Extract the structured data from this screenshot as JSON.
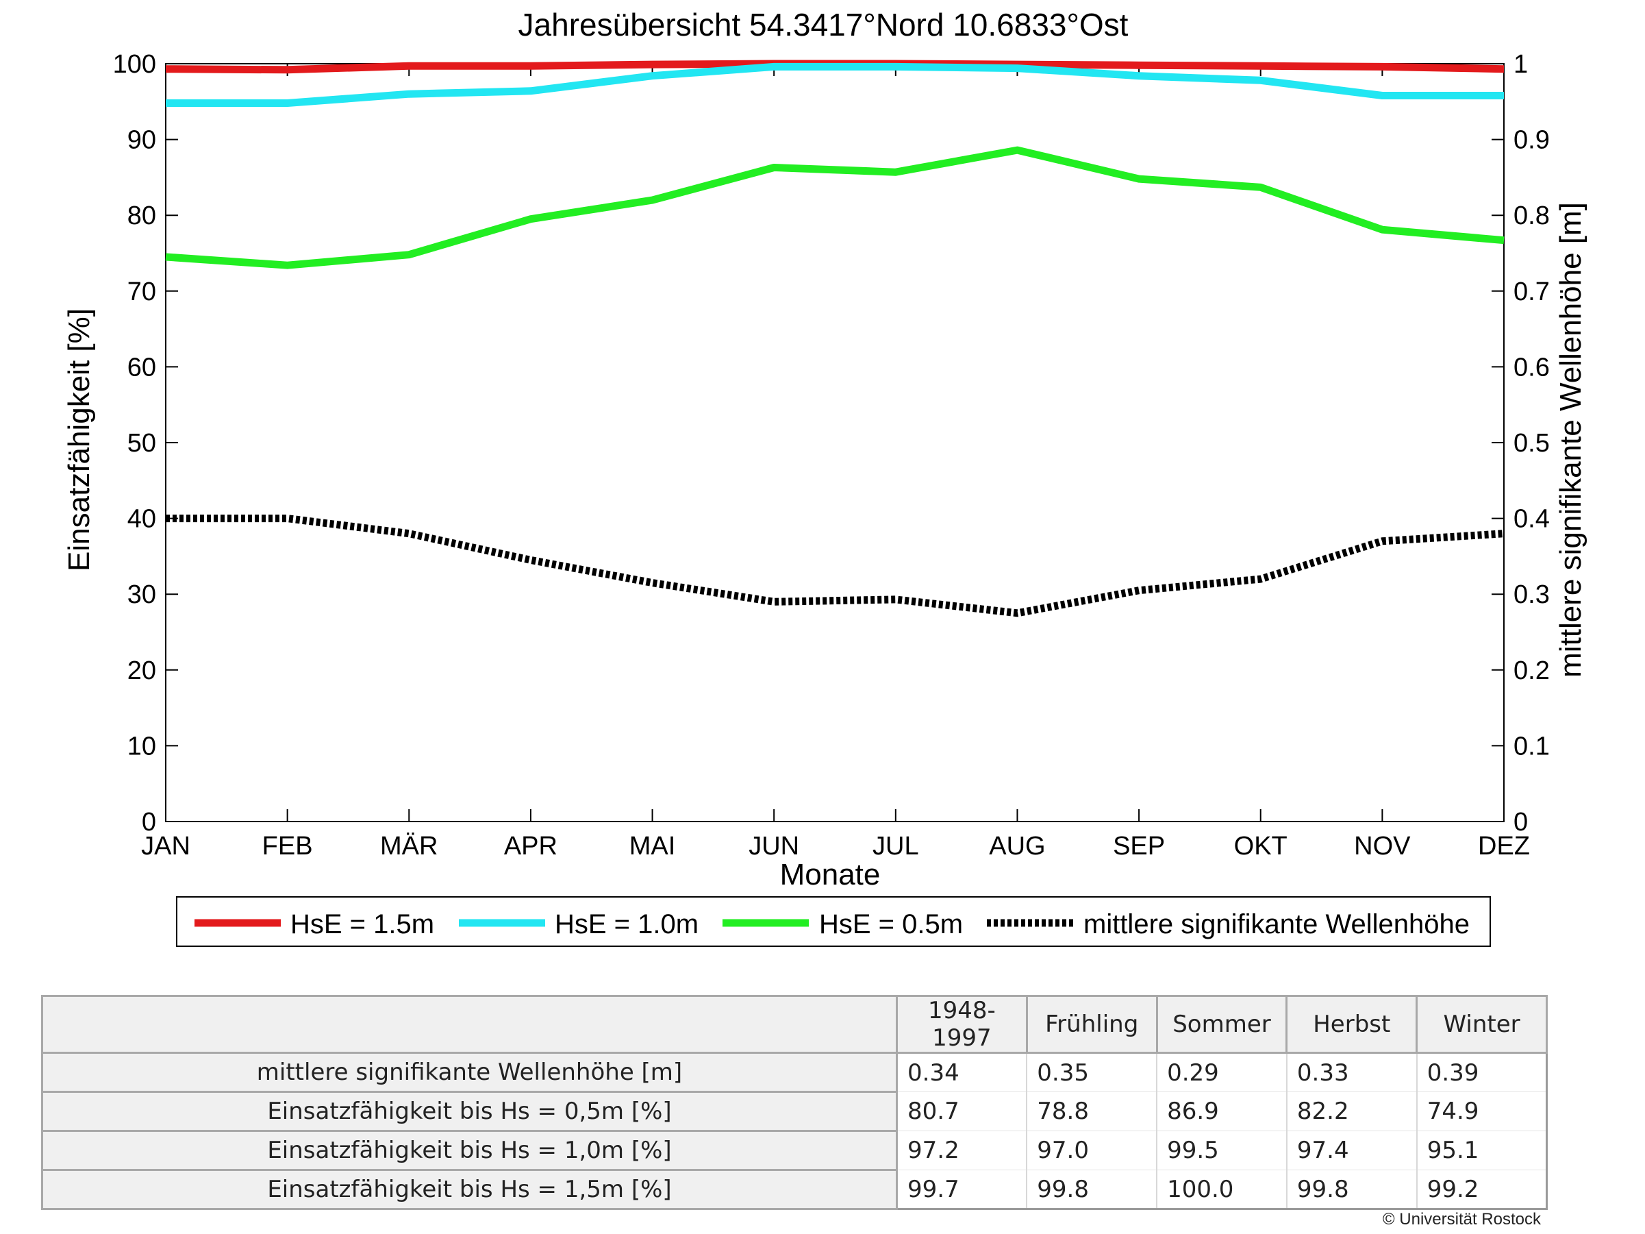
{
  "chart_data": {
    "type": "line",
    "title": "Jahresübersicht  54.3417°Nord  10.6833°Ost",
    "xlabel": "Monate",
    "ylabel": "Einsatzfähigkeit [%]",
    "y2label": "mittlere signifikante Wellenhöhe [m]",
    "categories": [
      "JAN",
      "FEB",
      "MÄR",
      "APR",
      "MAI",
      "JUN",
      "JUL",
      "AUG",
      "SEP",
      "OKT",
      "NOV",
      "DEZ"
    ],
    "ylim": [
      0,
      100
    ],
    "y2lim": [
      0,
      1
    ],
    "yticks": [
      "0",
      "10",
      "20",
      "30",
      "40",
      "50",
      "60",
      "70",
      "80",
      "90",
      "100"
    ],
    "y2ticks": [
      "0",
      "0.1",
      "0.2",
      "0.3",
      "0.4",
      "0.5",
      "0.6",
      "0.7",
      "0.8",
      "0.9",
      "1"
    ],
    "legend_position": "bottom",
    "grid": false,
    "series": [
      {
        "name": "HsE = 1.5m",
        "axis": "left",
        "color": "#e31a1c",
        "style": "solid",
        "values": [
          99.3,
          99.2,
          99.7,
          99.7,
          99.9,
          100.0,
          100.0,
          99.9,
          99.8,
          99.7,
          99.6,
          99.3
        ]
      },
      {
        "name": "HsE = 1.0m",
        "axis": "left",
        "color": "#22e6f2",
        "style": "solid",
        "values": [
          94.8,
          94.8,
          96.0,
          96.4,
          98.4,
          99.6,
          99.6,
          99.4,
          98.4,
          97.8,
          95.8,
          95.8
        ]
      },
      {
        "name": "HsE = 0.5m",
        "axis": "left",
        "color": "#22ee22",
        "style": "solid",
        "values": [
          74.5,
          73.4,
          74.8,
          79.5,
          82.0,
          86.3,
          85.7,
          88.6,
          84.8,
          83.7,
          78.1,
          76.7
        ]
      },
      {
        "name": "mittlere signifikante Wellenhöhe",
        "axis": "right",
        "color": "#000000",
        "style": "dotted",
        "values": [
          0.4,
          0.4,
          0.38,
          0.345,
          0.315,
          0.29,
          0.293,
          0.275,
          0.305,
          0.32,
          0.37,
          0.38
        ]
      }
    ]
  },
  "table": {
    "columns": [
      "1948-1997",
      "Frühling",
      "Sommer",
      "Herbst",
      "Winter"
    ],
    "rows": [
      {
        "label": "mittlere signifikante Wellenhöhe [m]",
        "values": [
          "0.34",
          "0.35",
          "0.29",
          "0.33",
          "0.39"
        ]
      },
      {
        "label": "Einsatzfähigkeit bis Hs = 0,5m [%]",
        "values": [
          "80.7",
          "78.8",
          "86.9",
          "82.2",
          "74.9"
        ]
      },
      {
        "label": "Einsatzfähigkeit bis Hs = 1,0m [%]",
        "values": [
          "97.2",
          "97.0",
          "99.5",
          "97.4",
          "95.1"
        ]
      },
      {
        "label": "Einsatzfähigkeit bis Hs = 1,5m [%]",
        "values": [
          "99.7",
          "99.8",
          "100.0",
          "99.8",
          "99.2"
        ]
      }
    ]
  },
  "copyright": "© Universität Rostock"
}
